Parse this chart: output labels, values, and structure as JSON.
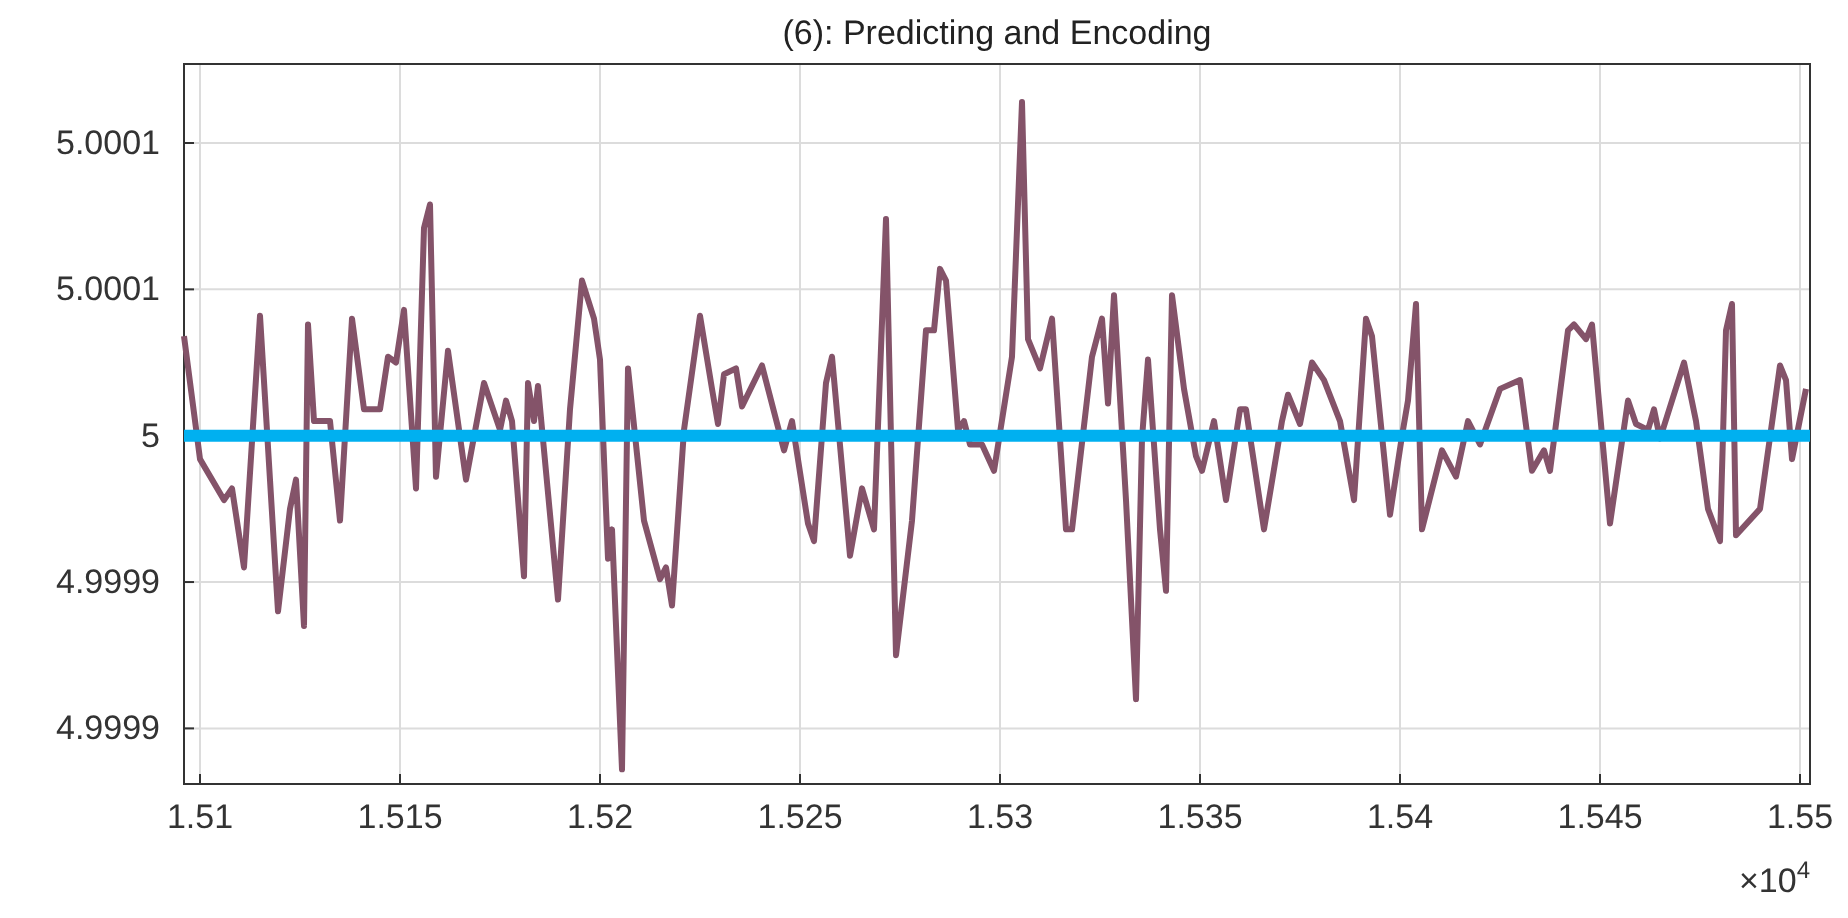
{
  "chart_data": {
    "type": "line",
    "title": "(6): Predicting and Encoding",
    "annotations": [
      "×10$^{4}$"
    ],
    "xlim": [
      1.5096,
      1.55025
    ],
    "xticks": [
      1.51,
      1.515,
      1.52,
      1.525,
      1.53,
      1.535,
      1.54,
      1.545,
      1.55
    ],
    "ylim": [
      4.999881,
      5.000127
    ],
    "yticks": [
      {
        "value": 4.9999,
        "label": "4.9999"
      },
      {
        "value": 4.99995,
        "label": "4.9999"
      },
      {
        "value": 5,
        "label": "5"
      },
      {
        "value": 5.00005,
        "label": "5.0001"
      },
      {
        "value": 5.0001,
        "label": "5.0001"
      }
    ],
    "grid": true,
    "marker": "none",
    "line_style": "solid",
    "series": [
      {
        "color": "#845369",
        "x": [
          1.5096,
          1.51,
          1.5106,
          1.5108,
          1.5111,
          1.5115,
          1.51195,
          1.51225,
          1.5124,
          1.5126,
          1.5127,
          1.51285,
          1.51325,
          1.5135,
          1.5138,
          1.5141,
          1.5145,
          1.5147,
          1.5149,
          1.5151,
          1.5154,
          1.5156,
          1.51575,
          1.5159,
          1.5162,
          1.51665,
          1.5171,
          1.5175,
          1.51765,
          1.5178,
          1.5181,
          1.5182,
          1.51835,
          1.51845,
          1.51895,
          1.51925,
          1.51955,
          1.51985,
          1.52,
          1.5202,
          1.5203,
          1.52055,
          1.5207,
          1.5211,
          1.5215,
          1.52165,
          1.5218,
          1.5221,
          1.5225,
          1.5228,
          1.52295,
          1.5231,
          1.5234,
          1.52355,
          1.52405,
          1.5246,
          1.5248,
          1.5252,
          1.52535,
          1.52565,
          1.5258,
          1.52625,
          1.52655,
          1.52685,
          1.52715,
          1.5274,
          1.5278,
          1.52815,
          1.52835,
          1.5285,
          1.52865,
          1.52895,
          1.5291,
          1.52925,
          1.52955,
          1.52985,
          1.5303,
          1.53055,
          1.5307,
          1.531,
          1.5313,
          1.53165,
          1.5318,
          1.5323,
          1.53255,
          1.5327,
          1.53285,
          1.53315,
          1.5334,
          1.53355,
          1.5337,
          1.534,
          1.53415,
          1.5343,
          1.5346,
          1.5349,
          1.53505,
          1.53535,
          1.53565,
          1.536,
          1.53615,
          1.5366,
          1.53705,
          1.5372,
          1.5375,
          1.5378,
          1.5381,
          1.5385,
          1.53885,
          1.53915,
          1.5393,
          1.53975,
          1.54005,
          1.5402,
          1.5404,
          1.54055,
          1.54105,
          1.5414,
          1.5417,
          1.542,
          1.5425,
          1.543,
          1.5433,
          1.5436,
          1.54375,
          1.5442,
          1.54435,
          1.54465,
          1.5448,
          1.54525,
          1.5457,
          1.5459,
          1.5462,
          1.54635,
          1.5465,
          1.5471,
          1.5474,
          1.5477,
          1.548,
          1.54815,
          1.5483,
          1.5484,
          1.549,
          1.5495,
          1.54965,
          1.5498,
          1.55015
        ],
        "values": [
          5.000034,
          4.999992,
          4.999978,
          4.999982,
          4.999955,
          5.000041,
          4.99994,
          4.999975,
          4.999985,
          4.999935,
          5.000038,
          5.000005,
          5.000005,
          4.999971,
          5.00004,
          5.000009,
          5.000009,
          5.000027,
          5.000025,
          5.000043,
          4.999982,
          5.000071,
          5.000079,
          4.999986,
          5.000029,
          4.999985,
          5.000018,
          5.000002,
          5.000012,
          5.000005,
          4.999952,
          5.000018,
          5.000005,
          5.000017,
          4.999944,
          5.000009,
          5.000053,
          5.00004,
          5.000026,
          4.999958,
          4.999968,
          4.999886,
          5.000023,
          4.999971,
          4.999951,
          4.999955,
          4.999942,
          5.000002,
          5.000041,
          5.000016,
          5.000004,
          5.000021,
          5.000023,
          5.00001,
          5.000024,
          4.999995,
          5.000005,
          4.99997,
          4.999964,
          5.000018,
          5.000027,
          4.999959,
          4.999982,
          4.999968,
          5.000074,
          4.999925,
          4.999971,
          5.000036,
          5.000036,
          5.000057,
          5.000053,
          5.000002,
          5.000005,
          4.999997,
          4.999997,
          4.999988,
          5.000027,
          5.000114,
          5.000033,
          5.000023,
          5.00004,
          4.999968,
          4.999968,
          5.000027,
          5.00004,
          5.000011,
          5.000048,
          4.999978,
          4.99991,
          4.999999,
          5.000026,
          4.999968,
          4.999947,
          5.000048,
          5.000016,
          4.999993,
          4.999988,
          5.000005,
          4.999978,
          5.000009,
          5.000009,
          4.999968,
          5.000005,
          5.000014,
          5.000004,
          5.000025,
          5.000019,
          5.000005,
          4.999978,
          5.00004,
          5.000034,
          4.999973,
          5,
          5.000012,
          5.000045,
          4.999968,
          4.999995,
          4.999986,
          5.000005,
          4.999997,
          5.000016,
          5.000019,
          4.999988,
          4.999995,
          4.999988,
          5.000036,
          5.000038,
          5.000033,
          5.000038,
          4.99997,
          5.000012,
          5.000004,
          5.000002,
          5.000009,
          4.999999,
          5.000025,
          5.000005,
          4.999975,
          4.999964,
          5.000036,
          5.000045,
          4.999966,
          4.999975,
          5.000024,
          5.000019,
          4.999992,
          5.000016
        ]
      },
      {
        "color": "#00b0f0",
        "x": [
          1.5096,
          1.55025
        ],
        "values": [
          5,
          5
        ]
      }
    ]
  }
}
